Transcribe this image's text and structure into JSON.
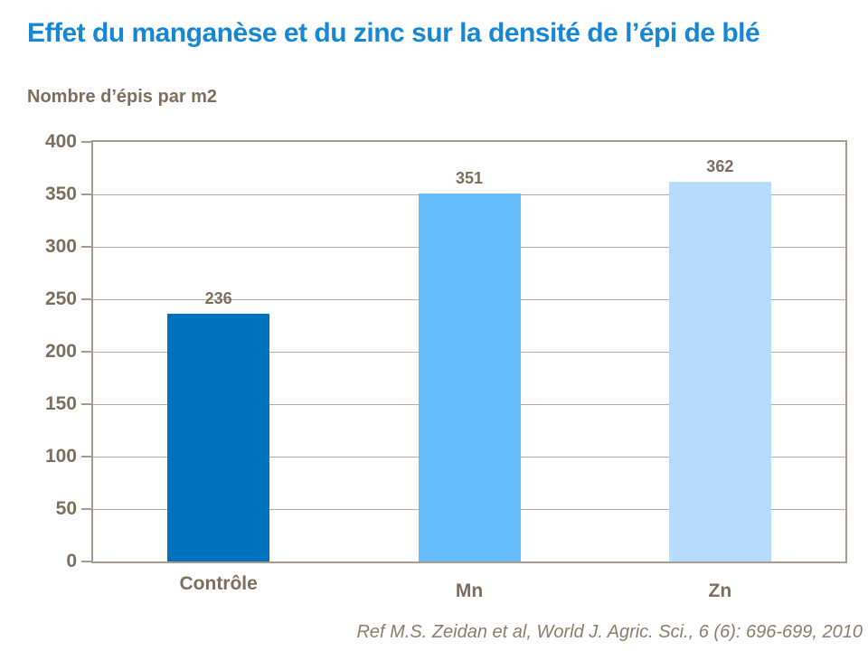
{
  "slide": {
    "title": "Effet du manganèse et du zinc sur la densité de l’épi de blé",
    "y_axis_caption": "Nombre d’épis par m2",
    "reference": "Ref M.S. Zeidan et al, World J. Agric. Sci., 6 (6): 696-699, 2010"
  },
  "colors": {
    "title_blue": "#1787D3",
    "axis_text_brown": "#7C6F5E",
    "reference_brown": "#8A7E6E",
    "plot_border": "#A79C8E",
    "gridline": "#B6ADA0",
    "bar_controle": "#0073BE",
    "bar_mn": "#66BCFA",
    "bar_zn": "#B6DBFC"
  },
  "chart_data": {
    "type": "bar",
    "title": "Effet du manganèse et du zinc sur la densité de l’épi de blé",
    "categories": [
      "Contrôle",
      "Mn",
      "Zn"
    ],
    "values": [
      236,
      351,
      362
    ],
    "data_labels": [
      "236",
      "351",
      "362"
    ],
    "bar_colors": [
      "#0073BE",
      "#66BCFA",
      "#B6DBFC"
    ],
    "xlabel": "",
    "ylabel": "Nombre d’épis par m2",
    "ylim": [
      0,
      400
    ],
    "ytick_step": 50,
    "ytick_labels": [
      "0",
      "50",
      "100",
      "150",
      "200",
      "250",
      "300",
      "350",
      "400"
    ],
    "grid": true,
    "legend": false,
    "annotation": "Ref M.S. Zeidan et al, World J. Agric. Sci., 6 (6): 696-699, 2010"
  }
}
